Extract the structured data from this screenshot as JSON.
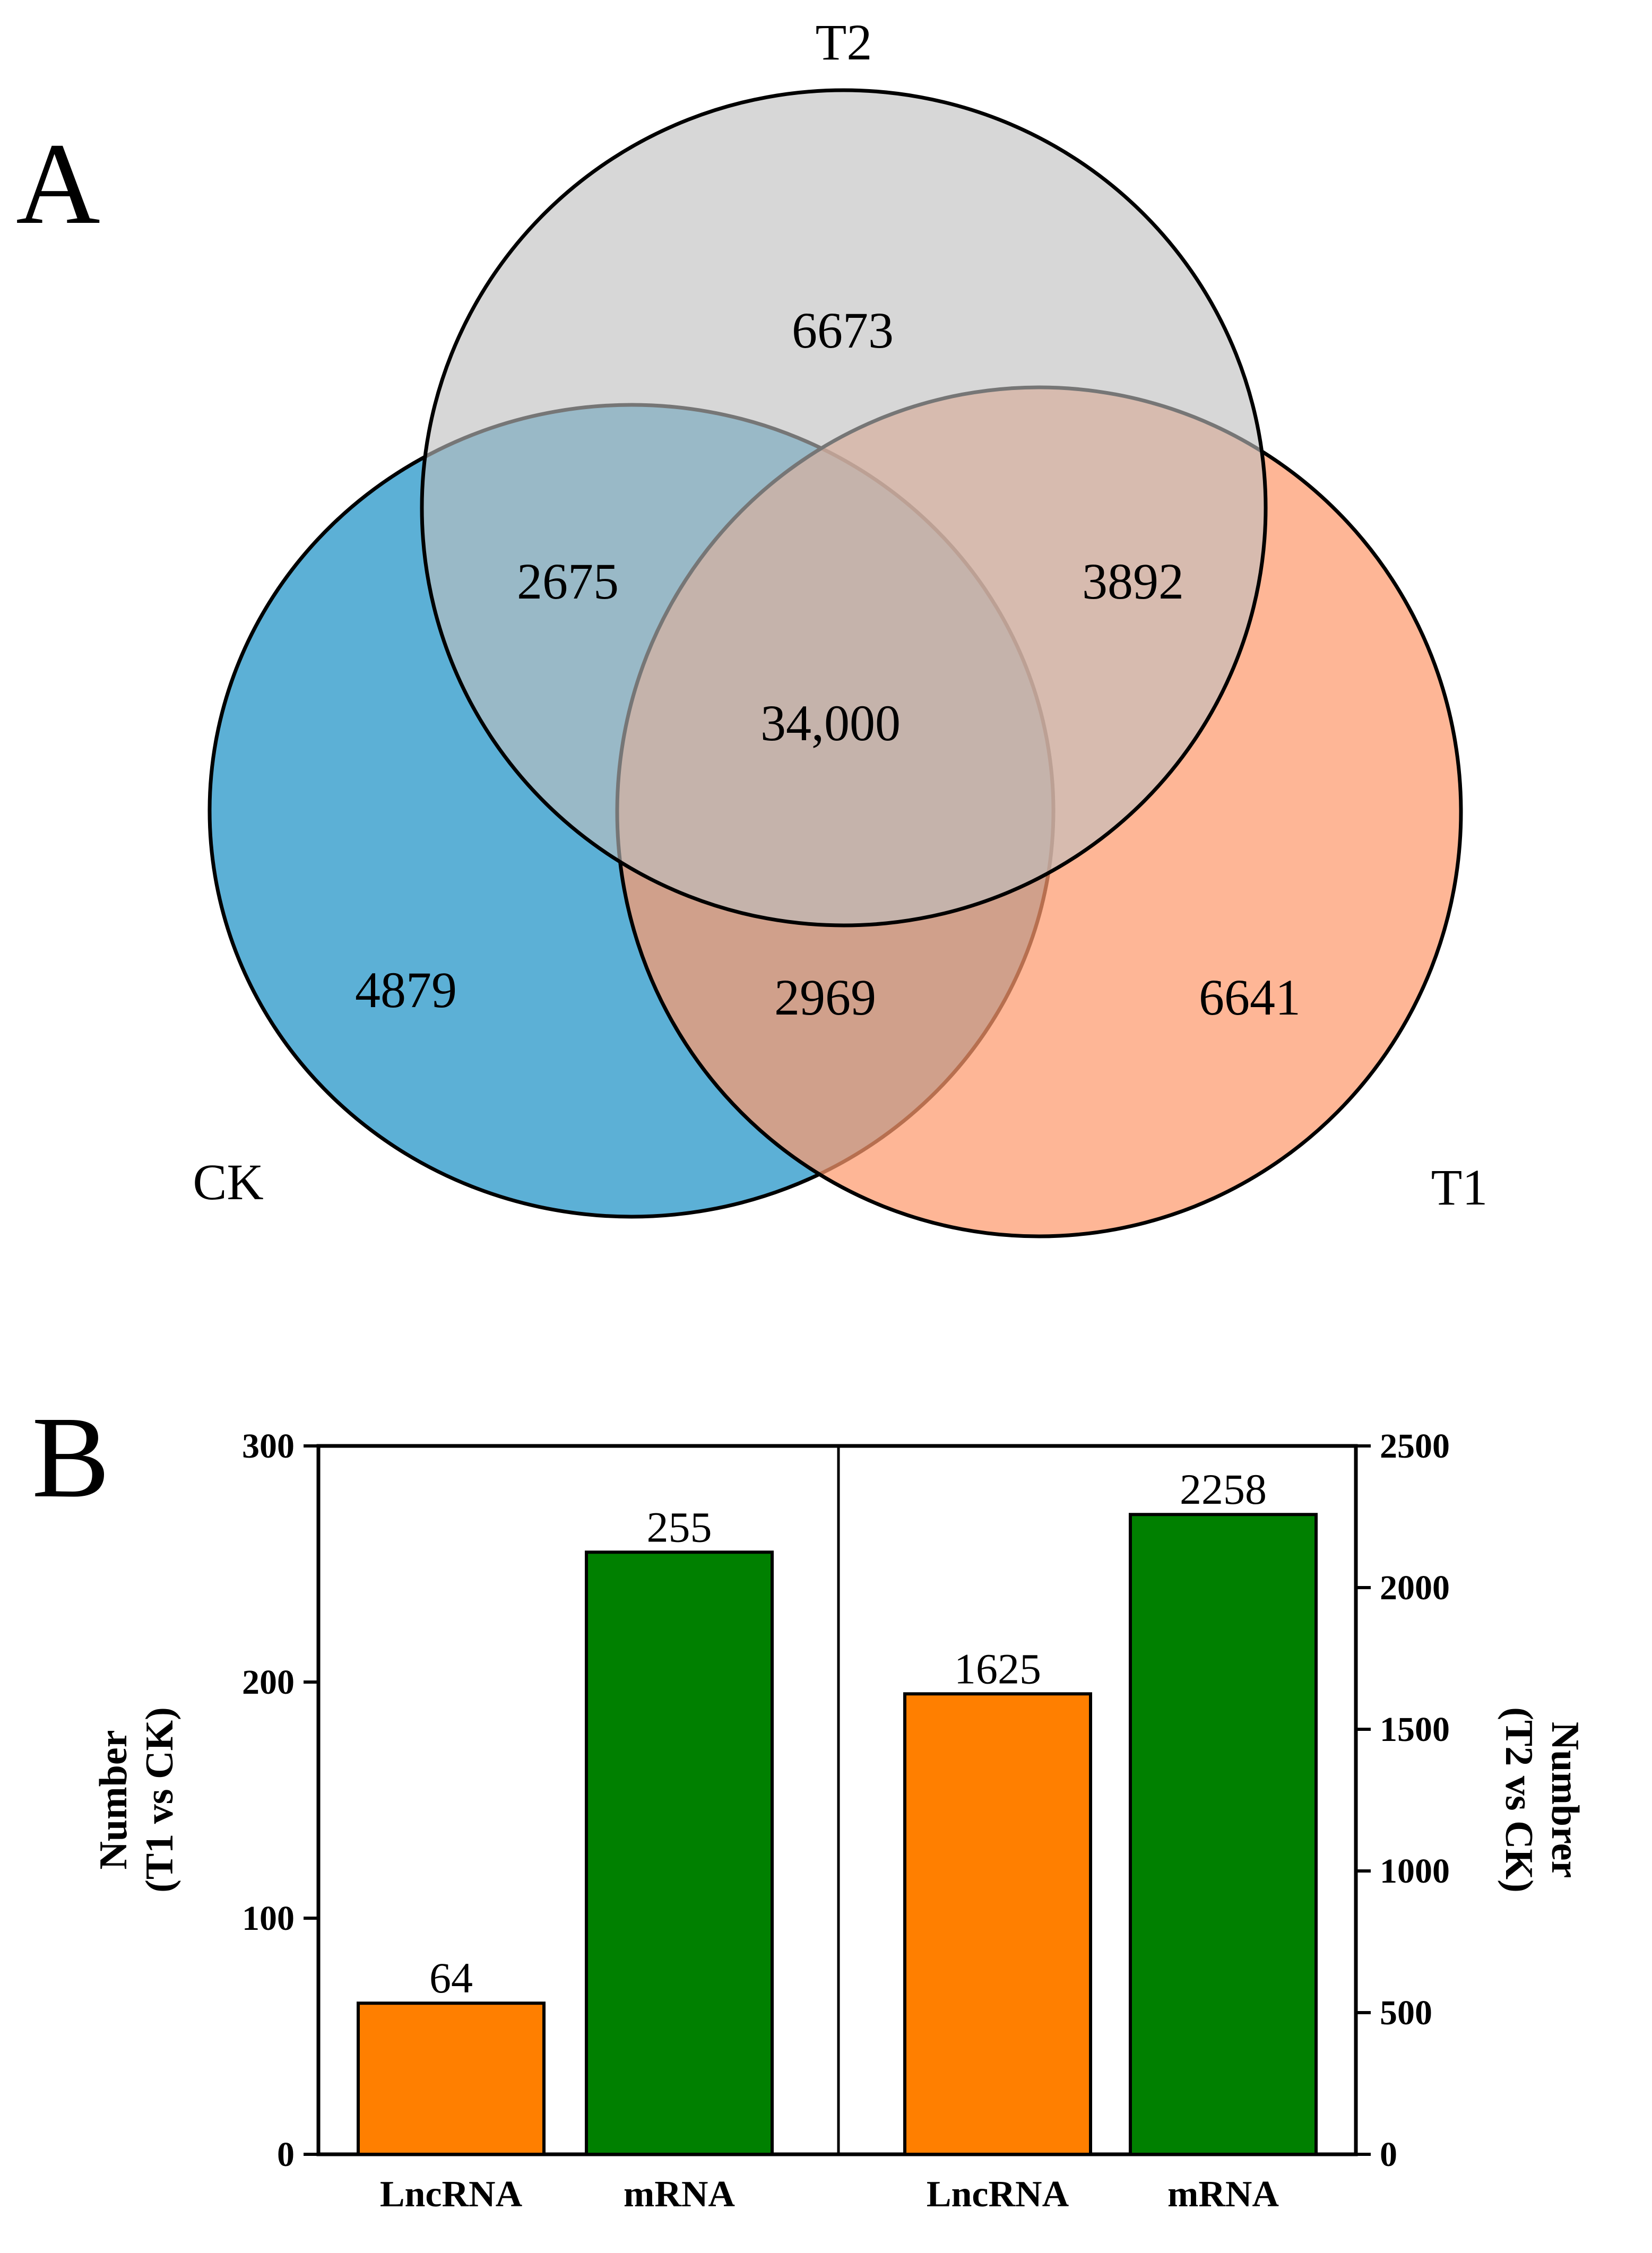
{
  "panel_a": {
    "letter": "A",
    "sets": [
      {
        "key": "T2",
        "label": "T2",
        "color": "#bfbfbf"
      },
      {
        "key": "CK",
        "label": "CK",
        "color": "#5aafd6"
      },
      {
        "key": "T1",
        "label": "T1",
        "color": "#fe9a6d"
      }
    ],
    "regions": {
      "t2_only": "6673",
      "ck_t2": "2675",
      "t1_t2": "3892",
      "all": "34,000",
      "ck_only": "4879",
      "ck_t1": "2969",
      "t1_only": "6641"
    }
  },
  "panel_b": {
    "letter": "B",
    "bar_colors": {
      "LncRNA": "#ff7f00",
      "mRNA": "#008000"
    }
  },
  "chart_data": [
    {
      "type": "venn",
      "sets": [
        "CK",
        "T1",
        "T2"
      ],
      "regions": {
        "CK only": 4879,
        "T1 only": 6641,
        "T2 only": 6673,
        "CK & T2": 2675,
        "T1 & T2": 3892,
        "CK & T1": 2969,
        "CK & T1 & T2": 34000
      }
    },
    {
      "type": "bar",
      "panels": [
        {
          "name": "T1 vs CK",
          "ylabel_line1": "Number",
          "ylabel_line2": "(T1 vs CK)",
          "ylim": [
            0,
            300
          ],
          "ticks": [
            0,
            100,
            200,
            300
          ],
          "categories": [
            "LncRNA",
            "mRNA"
          ],
          "values": [
            64,
            255
          ]
        },
        {
          "name": "T2 vs CK",
          "ylabel_line1": "Numbrer",
          "ylabel_line2": "(T2 vs CK)",
          "ylim": [
            0,
            2500
          ],
          "ticks": [
            0,
            500,
            1000,
            1500,
            2000,
            2500
          ],
          "categories": [
            "LncRNA",
            "mRNA"
          ],
          "values": [
            1625,
            2258
          ]
        }
      ]
    }
  ]
}
